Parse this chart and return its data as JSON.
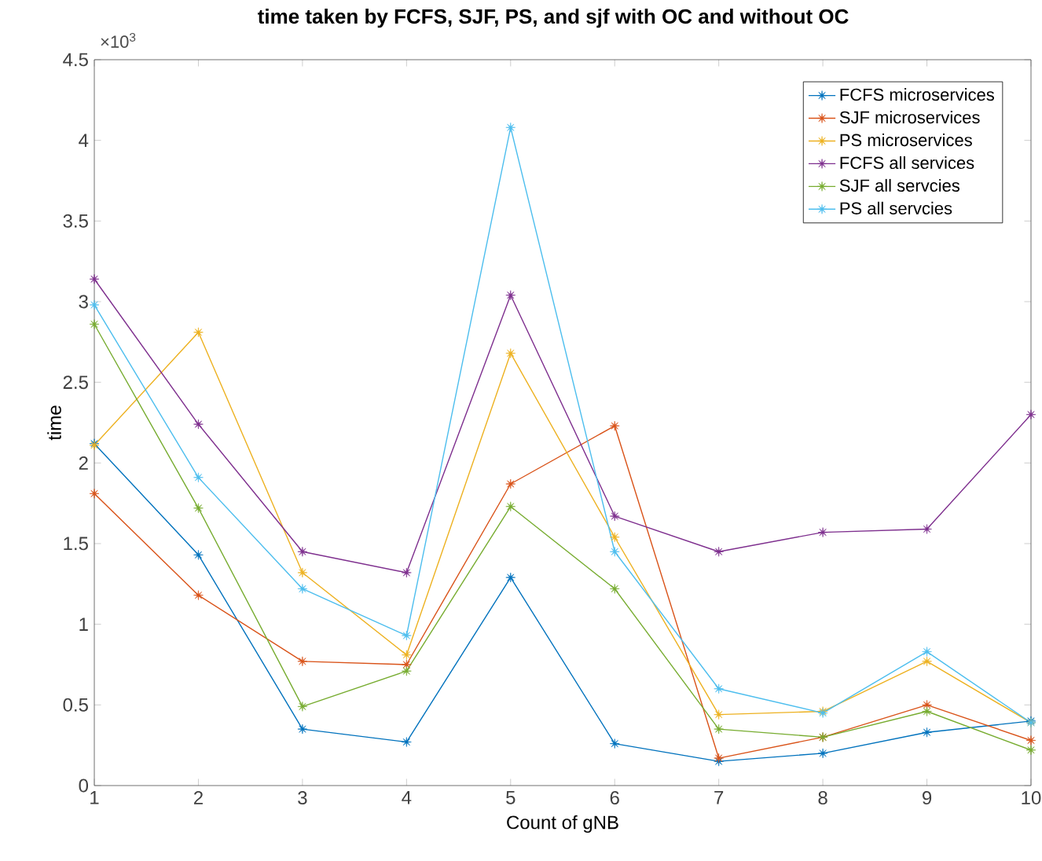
{
  "chart_data": {
    "type": "line",
    "title": "time taken by FCFS, SJF, PS, and sjf with OC and without OC",
    "xlabel": "Count of gNB",
    "ylabel": "time",
    "annotations": [
      "×10$^{3}$"
    ],
    "x": [
      1,
      2,
      3,
      4,
      5,
      6,
      7,
      8,
      9,
      10
    ],
    "xlim": [
      1,
      10
    ],
    "xticks": [
      1,
      2,
      3,
      4,
      5,
      6,
      7,
      8,
      9,
      10
    ],
    "ylim": [
      0,
      4.5
    ],
    "yticks": [
      0,
      0.5,
      1,
      1.5,
      2,
      2.5,
      3,
      3.5,
      4,
      4.5
    ],
    "marker": "star",
    "line_style": "solid",
    "legend": "top right",
    "grid": false,
    "series": [
      {
        "name": "FCFS microservices",
        "color": "#0072bd",
        "values": [
          2.12,
          1.43,
          0.35,
          0.27,
          1.29,
          0.26,
          0.15,
          0.2,
          0.33,
          0.4
        ]
      },
      {
        "name": "SJF microservices",
        "color": "#d95319",
        "values": [
          1.81,
          1.18,
          0.77,
          0.75,
          1.87,
          2.23,
          0.17,
          0.3,
          0.5,
          0.28
        ]
      },
      {
        "name": "PS microservices",
        "color": "#edb120",
        "values": [
          2.11,
          2.81,
          1.32,
          0.81,
          2.68,
          1.54,
          0.44,
          0.46,
          0.77,
          0.39
        ]
      },
      {
        "name": "FCFS all services",
        "color": "#7e2f8e",
        "values": [
          3.14,
          2.24,
          1.45,
          1.32,
          3.04,
          1.67,
          1.45,
          1.57,
          1.59,
          2.3
        ]
      },
      {
        "name": "SJF all servcies",
        "color": "#77ac30",
        "values": [
          2.86,
          1.72,
          0.49,
          0.71,
          1.73,
          1.22,
          0.35,
          0.3,
          0.46,
          0.22
        ]
      },
      {
        "name": "PS all servcies",
        "color": "#4dbeee",
        "values": [
          2.98,
          1.91,
          1.22,
          0.93,
          4.08,
          1.45,
          0.6,
          0.45,
          0.83,
          0.39
        ]
      }
    ]
  }
}
